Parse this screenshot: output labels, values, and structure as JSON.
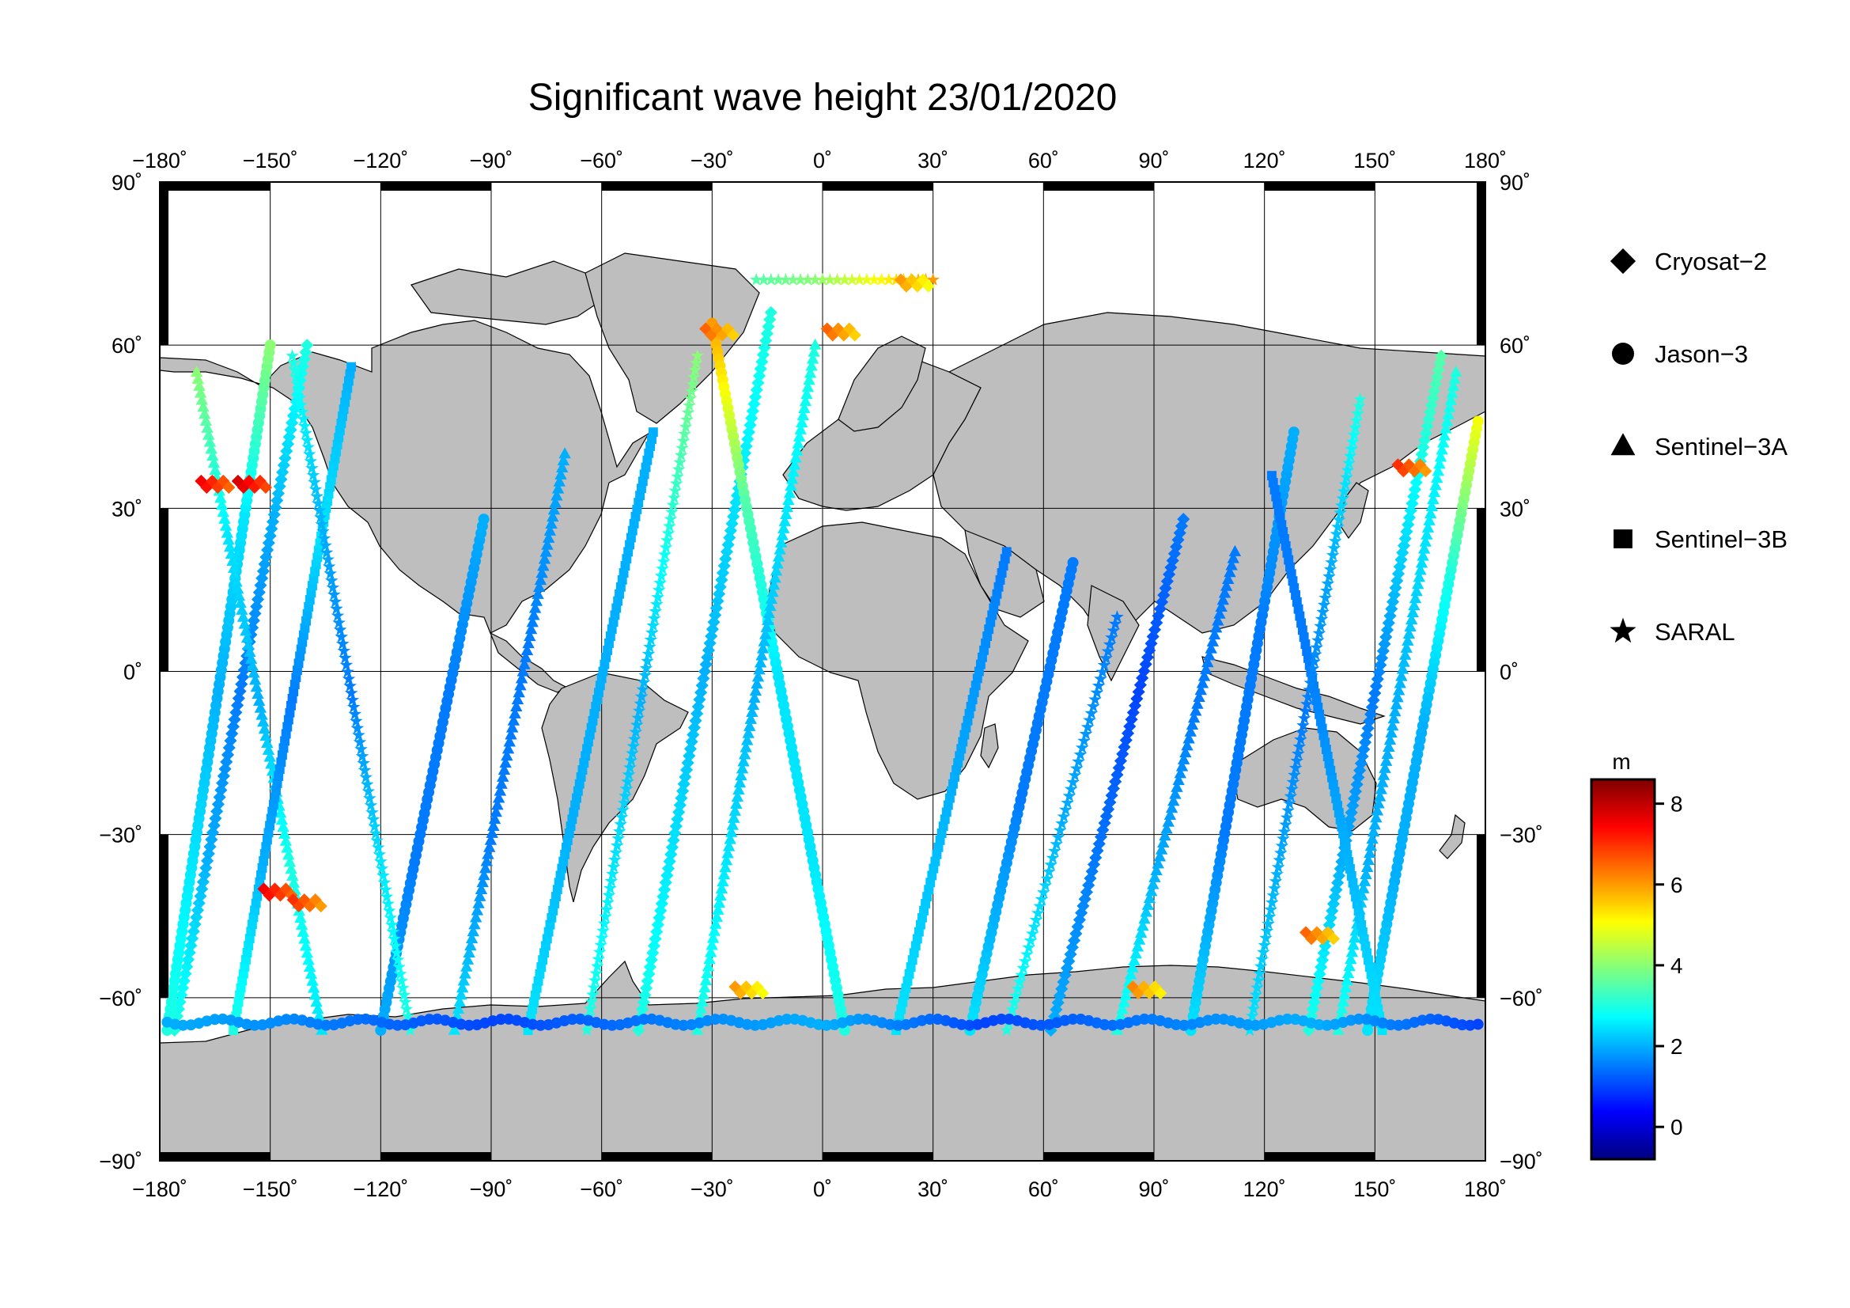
{
  "title": "Significant wave height 23/01/2020",
  "map": {
    "projection": "equirectangular",
    "lon_range": [
      -180,
      180
    ],
    "lat_range": [
      -90,
      90
    ],
    "grid_step_lon": 30,
    "grid_step_lat": 30,
    "land_color": "#bebebe",
    "ocean_color": "#ffffff"
  },
  "axes": {
    "lon_ticks": [
      {
        "value": -180,
        "label": "−180˚"
      },
      {
        "value": -150,
        "label": "−150˚"
      },
      {
        "value": -120,
        "label": "−120˚"
      },
      {
        "value": -90,
        "label": "−90˚"
      },
      {
        "value": -60,
        "label": "−60˚"
      },
      {
        "value": -30,
        "label": "−30˚"
      },
      {
        "value": 0,
        "label": "0˚"
      },
      {
        "value": 30,
        "label": "30˚"
      },
      {
        "value": 60,
        "label": "60˚"
      },
      {
        "value": 90,
        "label": "90˚"
      },
      {
        "value": 120,
        "label": "120˚"
      },
      {
        "value": 150,
        "label": "150˚"
      },
      {
        "value": 180,
        "label": "180˚"
      }
    ],
    "lat_ticks": [
      {
        "value": 90,
        "label": "90˚"
      },
      {
        "value": 60,
        "label": "60˚"
      },
      {
        "value": 30,
        "label": "30˚"
      },
      {
        "value": 0,
        "label": "0˚"
      },
      {
        "value": -30,
        "label": "−30˚"
      },
      {
        "value": -60,
        "label": "−60˚"
      },
      {
        "value": -90,
        "label": "−90˚"
      }
    ]
  },
  "legend": [
    {
      "label": "Cryosat−2",
      "marker": "diamond"
    },
    {
      "label": "Jason−3",
      "marker": "circle"
    },
    {
      "label": "Sentinel−3A",
      "marker": "triangle"
    },
    {
      "label": "Sentinel−3B",
      "marker": "square"
    },
    {
      "label": "SARAL",
      "marker": "star"
    }
  ],
  "colorbar": {
    "unit": "m",
    "min": -0.8,
    "max": 8.6,
    "ticks": [
      {
        "value": 0,
        "label": "0"
      },
      {
        "value": 2,
        "label": "2"
      },
      {
        "value": 4,
        "label": "4"
      },
      {
        "value": 6,
        "label": "6"
      },
      {
        "value": 8,
        "label": "8"
      }
    ],
    "colormap": [
      "#00007f",
      "#0000ff",
      "#007fff",
      "#00ffff",
      "#7fff7f",
      "#ffff00",
      "#ff7f00",
      "#ff0000",
      "#7f0000"
    ]
  },
  "chart_data": {
    "type": "scatter",
    "xlabel": "",
    "ylabel": "",
    "xlim": [
      -180,
      180
    ],
    "ylim": [
      -90,
      90
    ],
    "value_unit": "m",
    "highlights": [
      {
        "lon": -165,
        "lat": 35,
        "swh": 7.5
      },
      {
        "lon": -155,
        "lat": 35,
        "swh": 7.8
      },
      {
        "lon": -148,
        "lat": -40,
        "swh": 7.5
      },
      {
        "lon": -140,
        "lat": -42,
        "swh": 7.0
      },
      {
        "lon": -28,
        "lat": 63,
        "swh": 6.5
      },
      {
        "lon": 5,
        "lat": 63,
        "swh": 6.5
      },
      {
        "lon": 25,
        "lat": 72,
        "swh": 6.0
      },
      {
        "lon": 160,
        "lat": 38,
        "swh": 7.0
      },
      {
        "lon": 135,
        "lat": -48,
        "swh": 6.5
      },
      {
        "lon": 88,
        "lat": -58,
        "swh": 6.2
      },
      {
        "lon": -20,
        "lat": -58,
        "swh": 6.0
      }
    ],
    "tracks": [
      {
        "series": "Cryosat−2",
        "marker": "diamond",
        "start": [
          -176,
          -66
        ],
        "end": [
          -140,
          60
        ],
        "swh_pattern": [
          3,
          2,
          1.5,
          2,
          3
        ]
      },
      {
        "series": "Cryosat−2",
        "marker": "diamond",
        "start": [
          -50,
          -66
        ],
        "end": [
          -14,
          66
        ],
        "swh_pattern": [
          3,
          2.5,
          2,
          2.5,
          3
        ]
      },
      {
        "series": "Cryosat−2",
        "marker": "diamond",
        "start": [
          62,
          -66
        ],
        "end": [
          98,
          28
        ],
        "swh_pattern": [
          2,
          1.5,
          1,
          1.5
        ]
      },
      {
        "series": "Cryosat−2",
        "marker": "diamond",
        "start": [
          132,
          -66
        ],
        "end": [
          168,
          58
        ],
        "swh_pattern": [
          3,
          2,
          1.5,
          2.5,
          3.5
        ]
      },
      {
        "series": "Jason−3",
        "marker": "circle",
        "start": [
          -178,
          -66
        ],
        "end": [
          -150,
          60
        ],
        "swh_pattern": [
          3,
          2.5,
          2,
          2.5,
          4
        ]
      },
      {
        "series": "Jason−3",
        "marker": "circle",
        "start": [
          -120,
          -66
        ],
        "end": [
          -92,
          28
        ],
        "swh_pattern": [
          2,
          1.5,
          1.5,
          2
        ]
      },
      {
        "series": "Jason−3",
        "marker": "circle",
        "start": [
          -30,
          64
        ],
        "end": [
          6,
          -66
        ],
        "swh_pattern": [
          6,
          3.5,
          2.5,
          2.5,
          3
        ]
      },
      {
        "series": "Jason−3",
        "marker": "circle",
        "start": [
          40,
          -66
        ],
        "end": [
          68,
          20
        ],
        "swh_pattern": [
          2.5,
          1.5,
          1.5
        ]
      },
      {
        "series": "Jason−3",
        "marker": "circle",
        "start": [
          100,
          -66
        ],
        "end": [
          128,
          44
        ],
        "swh_pattern": [
          2.5,
          1.5,
          1.5,
          2
        ]
      },
      {
        "series": "Jason−3",
        "marker": "circle",
        "start": [
          178,
          46
        ],
        "end": [
          148,
          -66
        ],
        "swh_pattern": [
          5,
          3,
          2,
          2,
          2.5
        ]
      },
      {
        "series": "Sentinel−3A",
        "marker": "triangle",
        "start": [
          -170,
          55
        ],
        "end": [
          -136,
          -66
        ],
        "swh_pattern": [
          4,
          2.5,
          2,
          3,
          2.5
        ]
      },
      {
        "series": "Sentinel−3A",
        "marker": "triangle",
        "start": [
          -100,
          -66
        ],
        "end": [
          -70,
          40
        ],
        "swh_pattern": [
          2.5,
          1.5,
          1.5,
          2
        ]
      },
      {
        "series": "Sentinel−3A",
        "marker": "triangle",
        "start": [
          -34,
          -66
        ],
        "end": [
          -2,
          60
        ],
        "swh_pattern": [
          3,
          2.5,
          2,
          2.5,
          3
        ]
      },
      {
        "series": "Sentinel−3A",
        "marker": "triangle",
        "start": [
          80,
          -66
        ],
        "end": [
          112,
          22
        ],
        "swh_pattern": [
          3,
          2,
          1.5,
          1.5
        ]
      },
      {
        "series": "Sentinel−3A",
        "marker": "triangle",
        "start": [
          172,
          55
        ],
        "end": [
          140,
          -66
        ],
        "swh_pattern": [
          3,
          2.5,
          2,
          2,
          3
        ]
      },
      {
        "series": "Sentinel−3B",
        "marker": "square",
        "start": [
          -160,
          -66
        ],
        "end": [
          -128,
          56
        ],
        "swh_pattern": [
          3,
          2,
          1.5,
          2.5,
          2
        ]
      },
      {
        "series": "Sentinel−3B",
        "marker": "square",
        "start": [
          -80,
          -66
        ],
        "end": [
          -46,
          44
        ],
        "swh_pattern": [
          2.5,
          2,
          2,
          2
        ]
      },
      {
        "series": "Sentinel−3B",
        "marker": "square",
        "start": [
          20,
          -66
        ],
        "end": [
          50,
          22
        ],
        "swh_pattern": [
          2.5,
          2,
          1.5
        ]
      },
      {
        "series": "Sentinel−3B",
        "marker": "square",
        "start": [
          152,
          -66
        ],
        "end": [
          122,
          36
        ],
        "swh_pattern": [
          2.5,
          2,
          1.5,
          1.5
        ]
      },
      {
        "series": "SARAL",
        "marker": "star",
        "start": [
          -144,
          58
        ],
        "end": [
          -112,
          -66
        ],
        "swh_pattern": [
          3,
          2,
          1.5,
          2.5,
          3
        ]
      },
      {
        "series": "SARAL",
        "marker": "star",
        "start": [
          -64,
          -66
        ],
        "end": [
          -34,
          58
        ],
        "swh_pattern": [
          3,
          2.5,
          2,
          3,
          4
        ]
      },
      {
        "series": "SARAL",
        "marker": "star",
        "start": [
          -18,
          72
        ],
        "end": [
          30,
          72
        ],
        "swh_pattern": [
          3.5,
          4,
          5,
          6
        ]
      },
      {
        "series": "SARAL",
        "marker": "star",
        "start": [
          50,
          -66
        ],
        "end": [
          80,
          10
        ],
        "swh_pattern": [
          3,
          2,
          1.5
        ]
      },
      {
        "series": "SARAL",
        "marker": "star",
        "start": [
          116,
          -66
        ],
        "end": [
          146,
          50
        ],
        "swh_pattern": [
          2.5,
          2,
          1.5,
          2,
          3
        ]
      }
    ],
    "southern_band": {
      "lat": -64.5,
      "lon_start": -178,
      "lon_end": 178,
      "swh_pattern": [
        2,
        1.5,
        1,
        1.5,
        2,
        1,
        1.5,
        2,
        1
      ]
    }
  }
}
